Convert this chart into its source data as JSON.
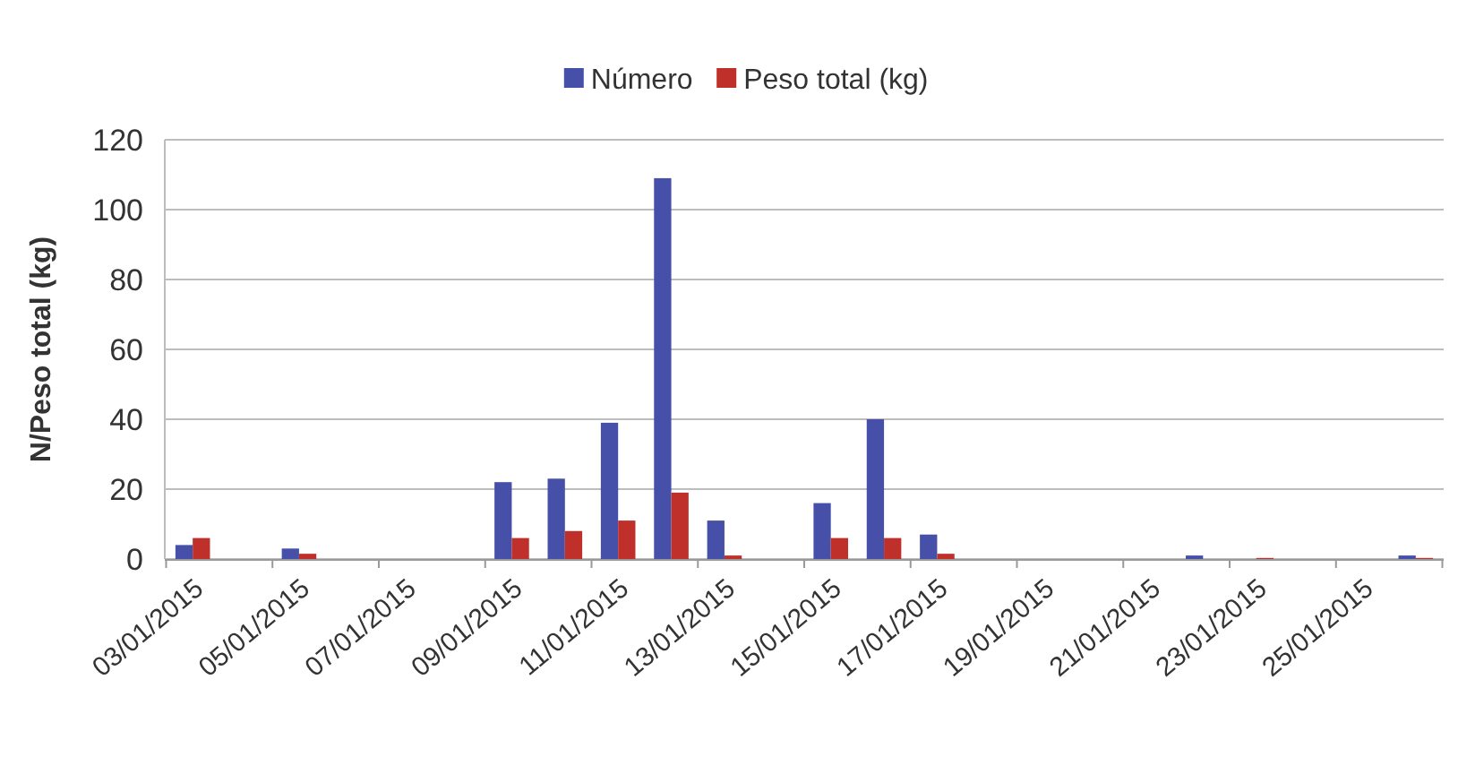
{
  "chart_data": {
    "type": "bar",
    "ylabel": "N/Peso total (kg)",
    "categories": [
      "03/01/2015",
      null,
      "05/01/2015",
      null,
      "07/01/2015",
      null,
      "09/01/2015",
      null,
      "11/01/2015",
      null,
      "13/01/2015",
      null,
      "15/01/2015",
      null,
      "17/01/2015",
      null,
      "19/01/2015",
      null,
      "21/01/2015",
      null,
      "23/01/2015",
      null,
      "25/01/2015",
      null
    ],
    "series": [
      {
        "name": "Número",
        "color": "#4650a8",
        "values": [
          4,
          0,
          3,
          0,
          0,
          0,
          22,
          23,
          39,
          109,
          11,
          0,
          16,
          40,
          7,
          0,
          0,
          0,
          0,
          1,
          0,
          0,
          0,
          1
        ]
      },
      {
        "name": "Peso total (kg)",
        "color": "#c0302a",
        "values": [
          6,
          0,
          1.5,
          0,
          0,
          0,
          6,
          8,
          11,
          19,
          1,
          0,
          6,
          6,
          1.5,
          0,
          0,
          0,
          0,
          0,
          0.3,
          0,
          0,
          0.3
        ]
      }
    ],
    "ylim": [
      0,
      120
    ],
    "yticks": [
      0,
      20,
      40,
      60,
      80,
      100,
      120
    ],
    "grid": "y",
    "legend": "top"
  }
}
